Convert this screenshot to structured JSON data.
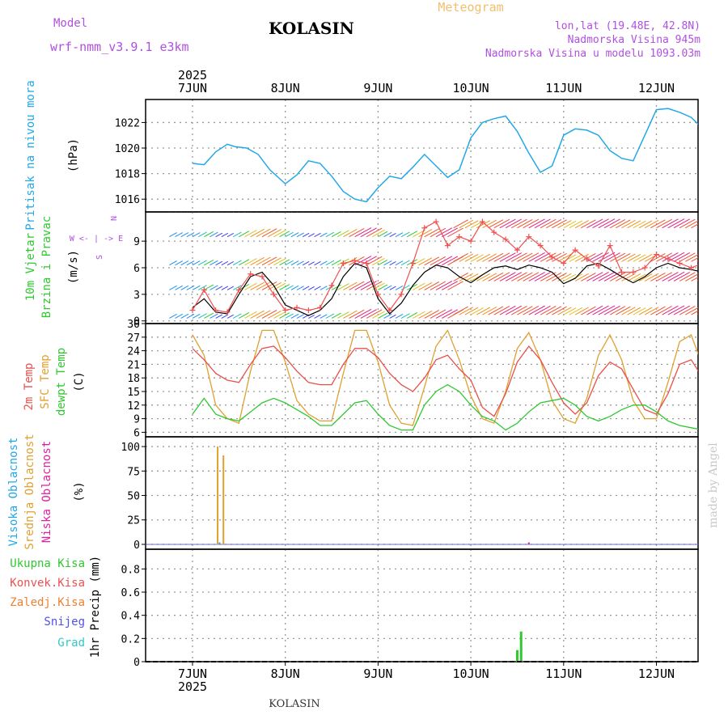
{
  "header": {
    "model_label": "Model",
    "model_name": "wrf-nmm_v3.9.1 e3km",
    "station": "KOLASIN",
    "chart_type": "Meteogram",
    "lonlat": "lon,lat (19.48E, 42.8N)",
    "altitude": "Nadmorska Visina 945m",
    "model_altitude": "Nadmorska Visina u modelu 1093.03m",
    "credit": "made by Angel",
    "footer_station": "KOLASIN"
  },
  "time_axis": {
    "year": "2025",
    "days": [
      "7JUN",
      "8JUN",
      "9JUN",
      "10JUN",
      "11JUN",
      "12JUN"
    ],
    "start_hour": 0,
    "end_hour": 142
  },
  "colors": {
    "pressure": "#22a8e8",
    "temp2m": "#e8504a",
    "sfc_temp": "#e0a030",
    "dewpt": "#30c830",
    "wind_speed": "#000000",
    "gust": "#f05050",
    "cloud_high": "#22a8e8",
    "cloud_mid": "#e0a030",
    "cloud_low": "#e020a0",
    "precip_total": "#30c830",
    "precip_conv": "#f05050",
    "precip_frozen": "#f08030",
    "precip_snow": "#5050f0",
    "precip_hail": "#30c8c8",
    "title_purple": "#b050e0",
    "title_orange": "#f0c070"
  },
  "chart_data": [
    {
      "type": "line",
      "name": "pressure",
      "ylabels": [
        "Pritisak na nivou mora",
        "(hPa)"
      ],
      "ylim": [
        1015,
        1023.8
      ],
      "yticks": [
        1016,
        1018,
        1020,
        1022
      ],
      "x": [
        0,
        3,
        6,
        9,
        11,
        14,
        17,
        20,
        24,
        27,
        30,
        33,
        36,
        39,
        42,
        45,
        48,
        51,
        54,
        57,
        60,
        63,
        66,
        69,
        72,
        75,
        78,
        81,
        84,
        87,
        90,
        93,
        96,
        99,
        102,
        105,
        108,
        111,
        114,
        117,
        120,
        123,
        126,
        129,
        132,
        135,
        138,
        141,
        142
      ],
      "y": [
        1018.8,
        1018.7,
        1019.7,
        1020.3,
        1020.1,
        1020.0,
        1019.5,
        1018.3,
        1017.2,
        1017.9,
        1019.0,
        1018.8,
        1017.8,
        1016.6,
        1016.0,
        1015.8,
        1016.9,
        1017.8,
        1017.6,
        1018.5,
        1019.5,
        1018.6,
        1017.7,
        1018.3,
        1020.8,
        1022.0,
        1022.3,
        1022.5,
        1021.3,
        1019.6,
        1018.1,
        1018.6,
        1021.0,
        1021.5,
        1021.4,
        1021.0,
        1019.8,
        1019.2,
        1019.0,
        1021.0,
        1023.0,
        1023.1,
        1022.8,
        1022.4,
        1021.5,
        1020.8,
        1020.0,
        1019.6,
        1019.8
      ]
    },
    {
      "type": "line",
      "name": "wind",
      "ylabels": [
        "10m Vjetar",
        "Brzina i Pravac",
        "(m/s)"
      ],
      "direction_legend": [
        "N",
        "W <- | -> E",
        "S"
      ],
      "ylim": [
        -0.3,
        12.3
      ],
      "yticks": [
        0,
        3,
        6,
        9
      ],
      "wind_speed": {
        "x": [
          0,
          3,
          6,
          9,
          12,
          15,
          18,
          21,
          24,
          27,
          30,
          33,
          36,
          39,
          42,
          45,
          48,
          51,
          54,
          57,
          60,
          63,
          66,
          69,
          72,
          75,
          78,
          81,
          84,
          87,
          90,
          93,
          96,
          99,
          102,
          105,
          108,
          111,
          114,
          117,
          120,
          123,
          126,
          129,
          132,
          135,
          138,
          141
        ],
        "y": [
          1.5,
          2.5,
          1.0,
          0.8,
          3.0,
          5.0,
          5.5,
          4.0,
          1.8,
          1.2,
          0.6,
          1.2,
          2.5,
          5.0,
          6.5,
          6.0,
          2.5,
          0.8,
          2.0,
          4.0,
          5.5,
          6.3,
          6.0,
          5.0,
          4.3,
          5.2,
          6.0,
          6.2,
          5.8,
          6.3,
          6.0,
          5.5,
          4.2,
          4.8,
          6.2,
          6.5,
          5.8,
          5.0,
          4.3,
          5.0,
          6.0,
          6.5,
          6.0,
          5.8,
          5.5,
          6.0,
          5.8,
          5.0
        ]
      },
      "gusts": {
        "x": [
          0,
          3,
          6,
          9,
          12,
          15,
          18,
          21,
          24,
          27,
          30,
          33,
          36,
          39,
          42,
          45,
          48,
          51,
          54,
          57,
          60,
          63,
          66,
          69,
          72,
          75,
          78,
          81,
          84,
          87,
          90,
          93,
          96,
          99,
          102,
          105,
          108,
          111,
          114,
          117,
          120,
          123,
          126,
          129,
          132,
          135,
          138,
          141,
          142
        ],
        "y": [
          1.2,
          3.5,
          1.2,
          1.0,
          3.5,
          5.3,
          5.0,
          3.0,
          1.2,
          1.5,
          1.2,
          1.5,
          4.0,
          6.5,
          6.8,
          6.5,
          3.0,
          1.2,
          3.0,
          6.5,
          10.5,
          11.2,
          8.5,
          9.5,
          9.0,
          11.2,
          10.0,
          9.2,
          8.0,
          9.5,
          8.5,
          7.2,
          6.5,
          8.0,
          7.0,
          6.2,
          8.5,
          5.5,
          5.5,
          6.0,
          7.5,
          7.0,
          6.5,
          6.0,
          6.5,
          6.0,
          6.3,
          5.5,
          3.8
        ]
      }
    },
    {
      "type": "line",
      "name": "temperature",
      "ylabels": [
        "2m Temp",
        "SFC Temp",
        "dewpt Temp",
        "(C)"
      ],
      "ylim": [
        5,
        30
      ],
      "yticks": [
        6,
        9,
        12,
        15,
        18,
        21,
        24,
        27,
        30
      ],
      "x": [
        0,
        3,
        6,
        9,
        12,
        15,
        18,
        21,
        24,
        27,
        30,
        33,
        36,
        39,
        42,
        45,
        48,
        51,
        54,
        57,
        60,
        63,
        66,
        69,
        72,
        75,
        78,
        81,
        84,
        87,
        90,
        93,
        96,
        99,
        102,
        105,
        108,
        111,
        114,
        117,
        120,
        123,
        126,
        129,
        132,
        135,
        138,
        141,
        142
      ],
      "t2m": [
        24.5,
        22.0,
        19.0,
        17.5,
        17.0,
        21.0,
        24.5,
        25.0,
        22.5,
        19.5,
        17.0,
        16.5,
        16.5,
        21.0,
        24.5,
        24.5,
        22.5,
        19.0,
        16.5,
        15.0,
        18.0,
        22.0,
        23.0,
        20.0,
        17.5,
        11.5,
        9.5,
        14.5,
        21.5,
        25.0,
        22.0,
        17.0,
        12.5,
        10.0,
        12.5,
        18.5,
        21.5,
        20.0,
        15.5,
        11.0,
        10.0,
        14.5,
        21.0,
        22.0,
        18.0,
        13.0,
        9.5,
        16.5,
        23.0
      ],
      "sfc": [
        27.5,
        23.0,
        12.0,
        9.0,
        8.0,
        19.5,
        28.5,
        28.5,
        21.5,
        13.0,
        10.0,
        8.5,
        8.5,
        19.0,
        28.5,
        28.5,
        21.5,
        12.0,
        8.0,
        7.5,
        16.0,
        25.0,
        28.5,
        22.0,
        14.0,
        9.0,
        8.0,
        15.0,
        24.5,
        28.0,
        22.0,
        13.0,
        9.0,
        8.0,
        13.5,
        23.0,
        27.5,
        22.0,
        13.0,
        9.0,
        9.0,
        17.0,
        26.0,
        27.5,
        20.5,
        12.0,
        8.0,
        19.0,
        28.0
      ],
      "dewpt": [
        10.0,
        13.5,
        10.0,
        9.0,
        8.5,
        10.5,
        12.5,
        13.5,
        12.5,
        11.0,
        9.5,
        7.5,
        7.5,
        10.0,
        12.5,
        13.0,
        10.0,
        7.5,
        6.5,
        6.5,
        12.0,
        15.0,
        16.5,
        15.0,
        12.0,
        9.5,
        8.5,
        6.5,
        8.0,
        10.5,
        12.5,
        13.0,
        13.5,
        12.0,
        9.5,
        8.5,
        9.5,
        11.0,
        12.0,
        12.0,
        10.5,
        8.5,
        7.5,
        7.0,
        6.5,
        6.5,
        7.5,
        10.5,
        11.5
      ]
    },
    {
      "type": "bar",
      "name": "cloud_cover",
      "ylabels": [
        "Visoka Oblacnost",
        "Srednja Oblacnost",
        "Niska Oblacnost",
        "(%)"
      ],
      "ylim": [
        -5,
        110
      ],
      "yticks": [
        0,
        25,
        50,
        75,
        100
      ],
      "series": [
        {
          "name": "Visoka Oblacnost",
          "x": [
            7
          ],
          "values": [
            2
          ]
        },
        {
          "name": "Srednja Oblacnost",
          "x": [
            6.5,
            8
          ],
          "values": [
            100,
            91
          ]
        },
        {
          "name": "Niska Oblacnost",
          "x": [
            87
          ],
          "values": [
            2
          ]
        }
      ]
    },
    {
      "type": "bar",
      "name": "precip",
      "ylabels": [
        "Ukupna Kisa",
        "Konvek.Kisa",
        "Zaledj.Kisa",
        "Snijeg",
        "Grad",
        "1hr Precip (mm)"
      ],
      "ylim": [
        0,
        0.97
      ],
      "yticks": [
        0,
        0.2,
        0.4,
        0.6,
        0.8
      ],
      "series": [
        {
          "name": "Ukupna Kisa",
          "x": [
            84,
            85
          ],
          "values": [
            0.1,
            0.26
          ]
        }
      ]
    }
  ]
}
